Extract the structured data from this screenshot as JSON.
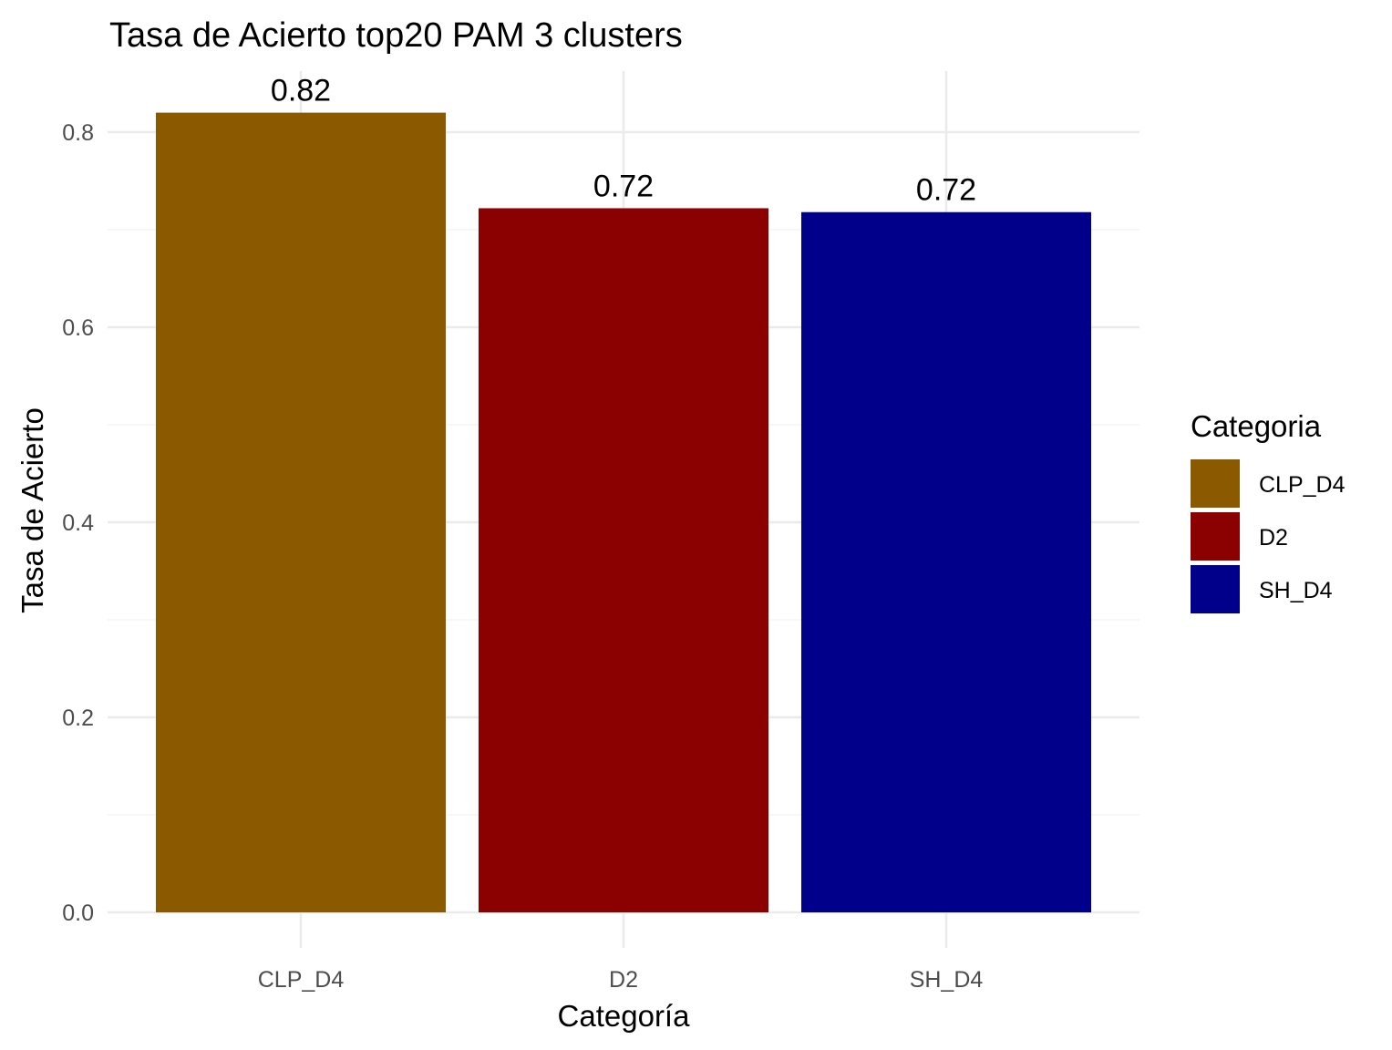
{
  "chart_data": {
    "type": "bar",
    "title": "Tasa de Acierto top20 PAM 3 clusters",
    "xlabel": "Categoría",
    "ylabel": "Tasa de Acierto",
    "categories": [
      "CLP_D4",
      "D2",
      "SH_D4"
    ],
    "values": [
      0.82,
      0.722,
      0.718
    ],
    "data_labels": [
      "0.82",
      "0.72",
      "0.72"
    ],
    "colors": [
      "#8B5A00",
      "#8B0000",
      "#00008B"
    ],
    "ylim": [
      0,
      0.86
    ],
    "y_ticks": [
      0,
      0.2,
      0.4,
      0.6,
      0.8
    ],
    "y_tick_labels": [
      "0.0",
      "0.2",
      "0.4",
      "0.6",
      "0.8"
    ],
    "grid": true,
    "legend": {
      "title": "Categoria",
      "placement": "right",
      "entries": [
        "CLP_D4",
        "D2",
        "SH_D4"
      ]
    }
  }
}
